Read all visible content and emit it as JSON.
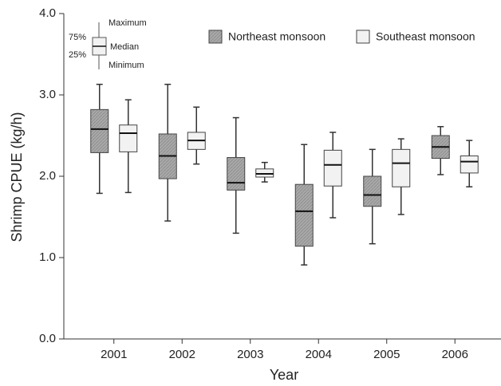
{
  "chart_data": {
    "type": "box",
    "x_label": "Year",
    "y_label": "Shrimp CPUE (kg/h)",
    "categories": [
      "2001",
      "2002",
      "2003",
      "2004",
      "2005",
      "2006"
    ],
    "series": [
      {
        "name": "Northeast monsoon",
        "color": "#a9a9a9",
        "min": [
          1.79,
          1.45,
          1.3,
          0.91,
          1.17,
          2.02
        ],
        "q1": [
          2.29,
          1.97,
          1.83,
          1.14,
          1.63,
          2.22
        ],
        "median": [
          2.58,
          2.25,
          1.92,
          1.57,
          1.77,
          2.36
        ],
        "q3": [
          2.82,
          2.52,
          2.23,
          1.9,
          2.0,
          2.5
        ],
        "max": [
          3.13,
          3.13,
          2.72,
          2.39,
          2.33,
          2.61
        ]
      },
      {
        "name": "Southeast monsoon",
        "color": "#f2f2f2",
        "min": [
          1.8,
          2.15,
          1.93,
          1.49,
          1.53,
          1.87
        ],
        "q1": [
          2.3,
          2.33,
          1.99,
          1.88,
          1.87,
          2.04
        ],
        "median": [
          2.53,
          2.44,
          2.03,
          2.14,
          2.16,
          2.18
        ],
        "q3": [
          2.63,
          2.54,
          2.09,
          2.32,
          2.33,
          2.25
        ],
        "max": [
          2.94,
          2.85,
          2.17,
          2.54,
          2.46,
          2.44
        ]
      }
    ],
    "box_key_labels": [
      "Maximum",
      "75%",
      "Median",
      "25%",
      "Minimum"
    ],
    "ylim": [
      0,
      4
    ],
    "yticks": [
      {
        "value": 0,
        "label": "0.0"
      },
      {
        "value": 1,
        "label": "1.0"
      },
      {
        "value": 2,
        "label": "2.0"
      },
      {
        "value": 3,
        "label": "3.0"
      },
      {
        "value": 4,
        "label": "4.0"
      }
    ],
    "legend": "top-right"
  }
}
